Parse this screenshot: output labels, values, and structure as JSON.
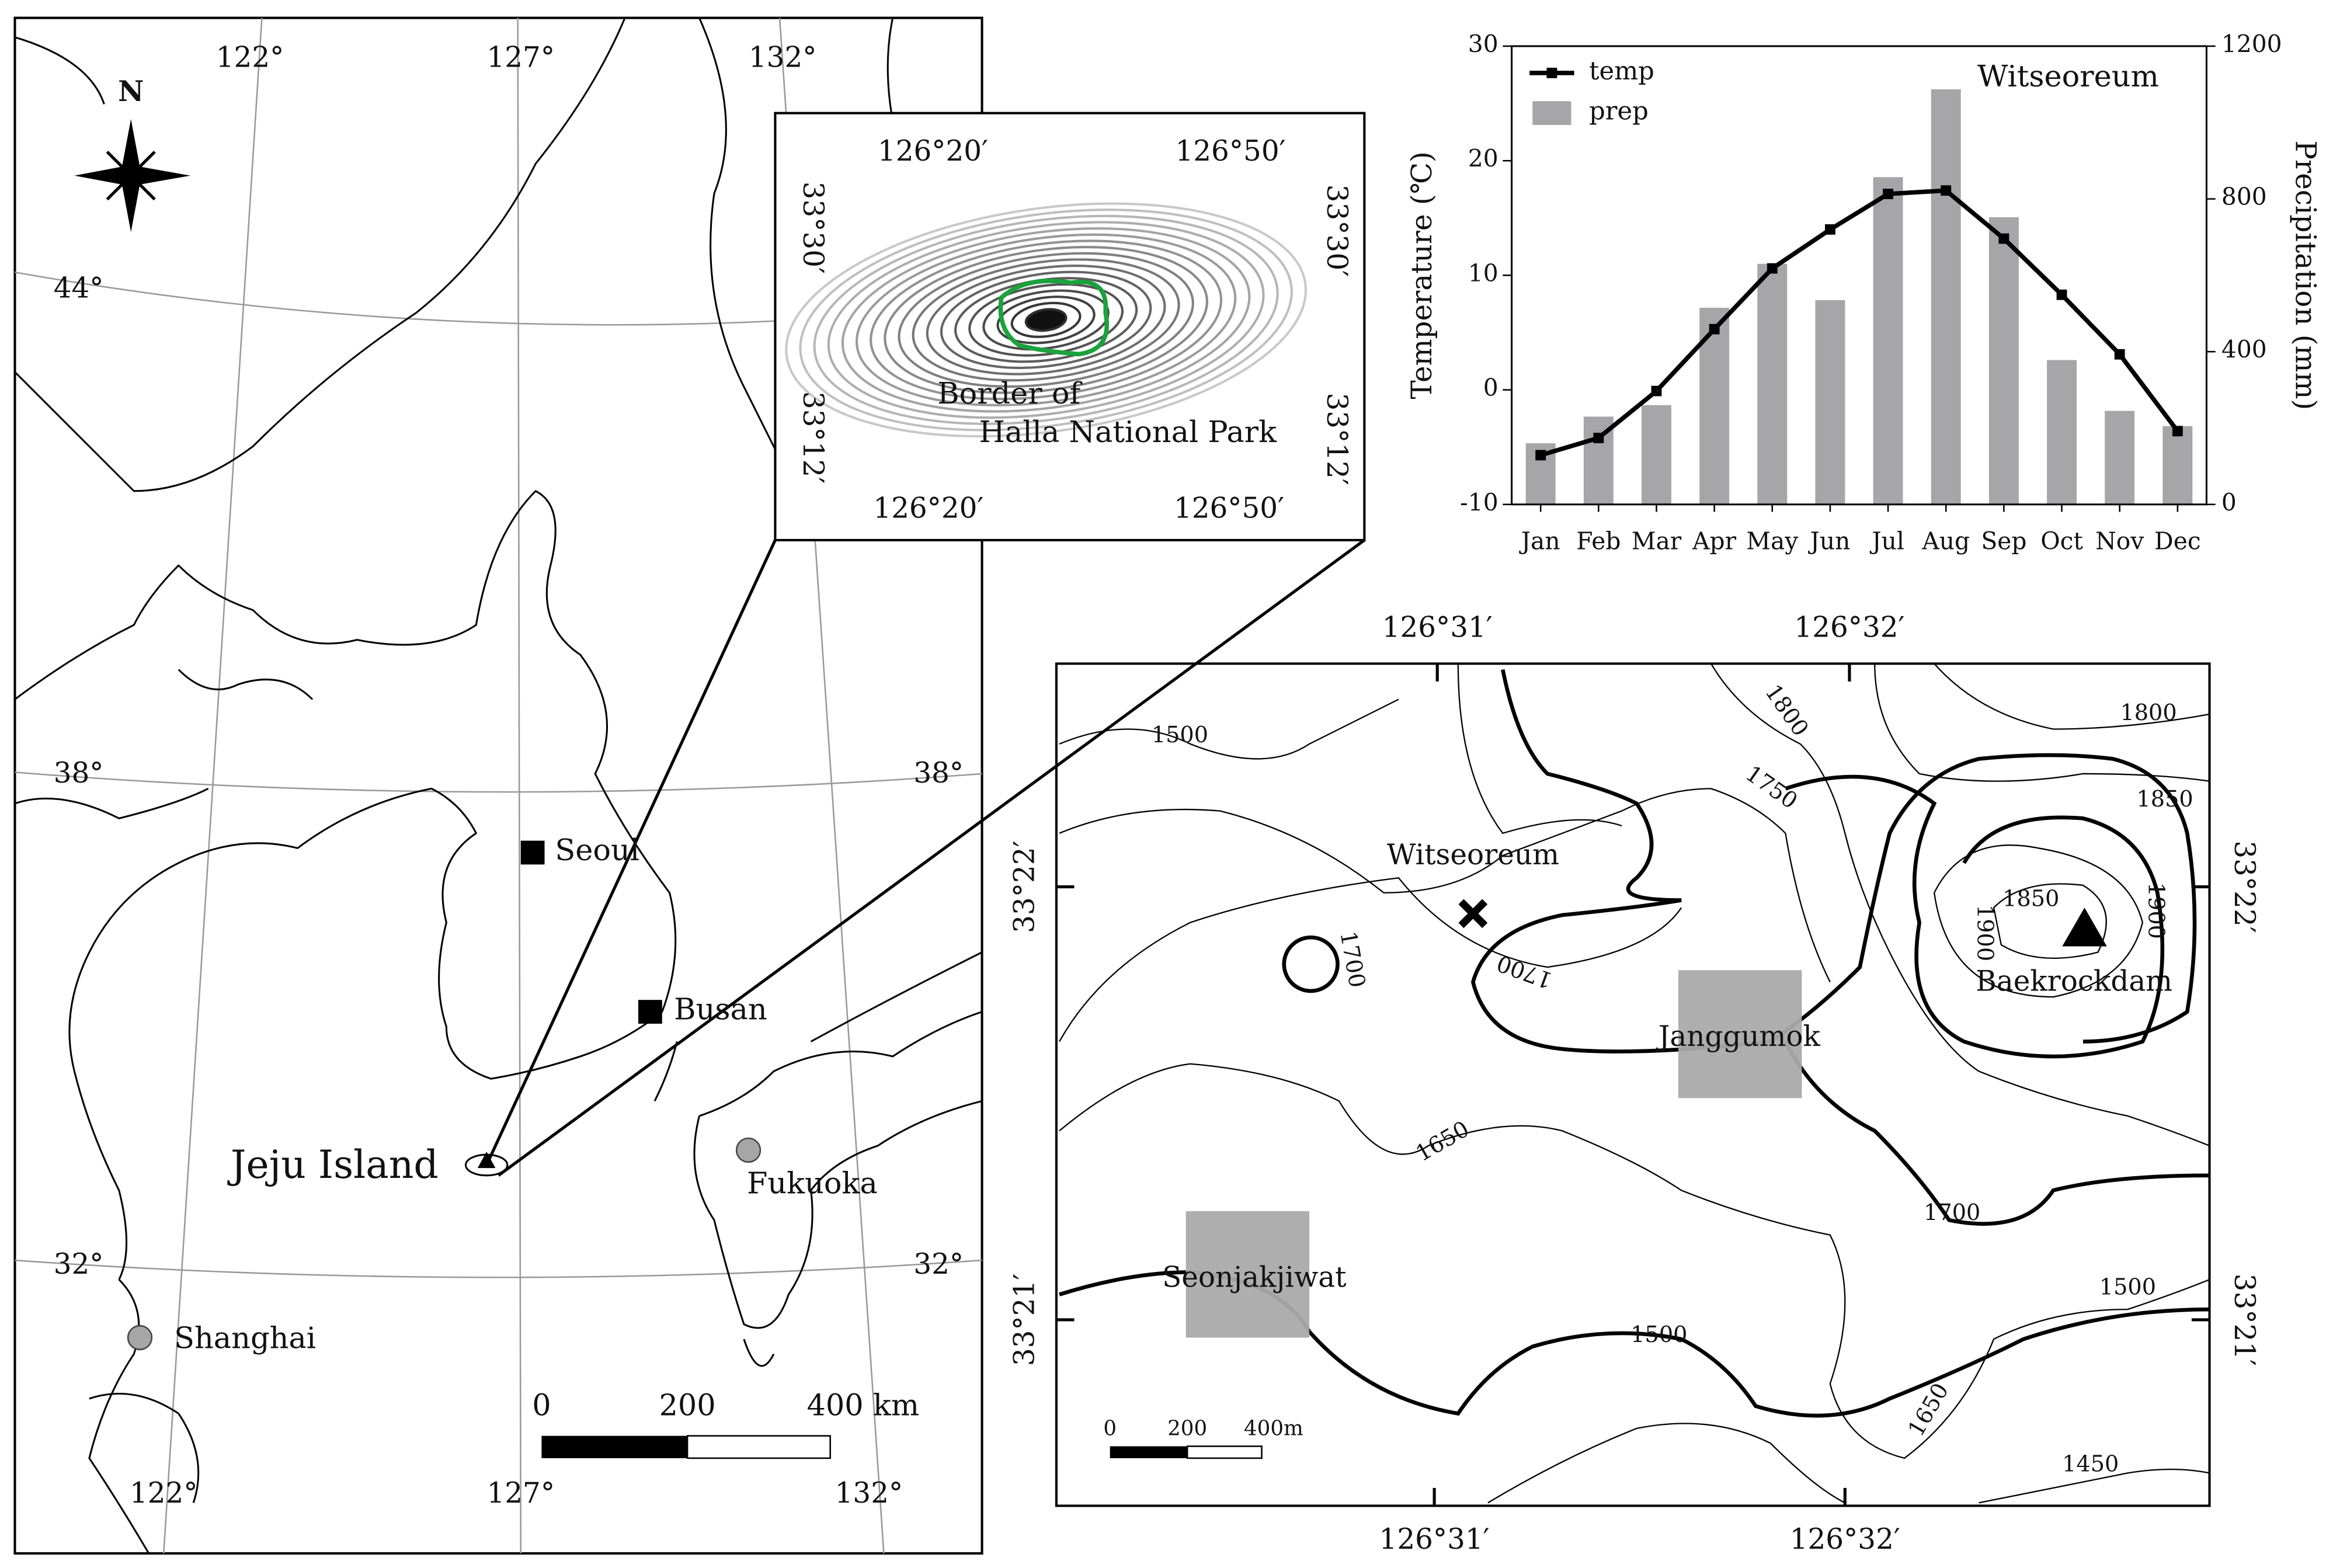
{
  "left_map": {
    "lon_top": [
      "122°",
      "127°",
      "132°"
    ],
    "lon_bottom": [
      "122°",
      "127°",
      "132°"
    ],
    "lat_left": [
      "44°",
      "38°",
      "32°"
    ],
    "lat_right": [
      "38°",
      "32°"
    ],
    "north": "N",
    "cities": [
      "Seoul",
      "Busan",
      "Fukuoka",
      "Shanghai"
    ],
    "island": "Jeju Island",
    "scale": [
      "0",
      "200",
      "400 km"
    ]
  },
  "inset_map": {
    "lon_top": [
      "126°20′",
      "126°50′"
    ],
    "lon_bottom": [
      "126°20′",
      "126°50′"
    ],
    "lat_left": [
      "33°30′",
      "33°12′"
    ],
    "lat_right": [
      "33°30′",
      "33°12′"
    ],
    "label": [
      "Border of",
      "Halla National Park"
    ]
  },
  "site_map": {
    "lon_top": [
      "126°31′",
      "126°32′"
    ],
    "lon_bottom": [
      "126°31′",
      "126°32′"
    ],
    "lat_left": [
      "33°22′",
      "33°21′"
    ],
    "lat_right": [
      "33°22′",
      "33°21′"
    ],
    "sites": [
      "Witseoreum",
      "Janggumok",
      "Seonjakjiwat",
      "Baekrockdam"
    ],
    "contours": [
      1500,
      1800,
      1750,
      1800,
      1850,
      1700,
      1700,
      1650,
      1850,
      1900,
      1900,
      1700,
      1500,
      1500,
      1650,
      1450
    ],
    "scale": [
      "0",
      "200",
      "400m"
    ]
  },
  "chart_data": {
    "type": "combo",
    "title": "Witseoreum",
    "ylabel": "Temperature (℃)",
    "y2label": "Precipitation (mm)",
    "categories": [
      "Jan",
      "Feb",
      "Mar",
      "Apr",
      "May",
      "Jun",
      "Jul",
      "Aug",
      "Sep",
      "Oct",
      "Nov",
      "Dec"
    ],
    "series": [
      {
        "name": "temp",
        "type": "line",
        "color": "#000000",
        "values": [
          -5.7,
          -4.2,
          -0.1,
          5.3,
          10.6,
          14,
          17.1,
          17.4,
          13.2,
          8.3,
          3.1,
          -3.6
        ]
      },
      {
        "name": "prep",
        "type": "bar",
        "color": "#a6a6a8",
        "axis": "y2",
        "values": [
          160,
          230,
          260,
          515,
          630,
          535,
          857,
          1087,
          752,
          378,
          245,
          205
        ]
      }
    ],
    "ylim": [
      -10,
      30
    ],
    "yticks": [
      -10,
      0,
      10,
      20,
      30
    ],
    "y2lim": [
      0,
      1200
    ],
    "y2ticks": [
      0,
      400,
      800,
      1200
    ],
    "legend": "upper-left"
  }
}
